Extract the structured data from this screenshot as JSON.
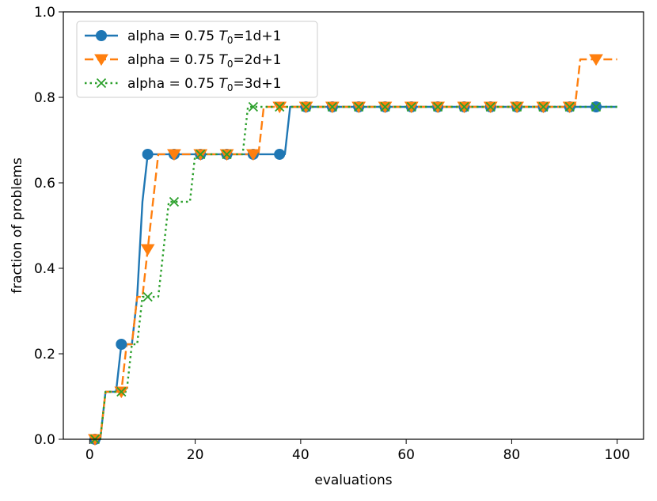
{
  "chart_data": {
    "type": "line",
    "title": "",
    "xlabel": "evaluations",
    "ylabel": "fraction of problems",
    "xlim": [
      -5,
      105
    ],
    "ylim": [
      0.0,
      1.0
    ],
    "xticks": [
      0,
      20,
      40,
      60,
      80,
      100
    ],
    "yticks": [
      0.0,
      0.2,
      0.4,
      0.6,
      0.8,
      1.0
    ],
    "xtick_labels": [
      "0",
      "20",
      "40",
      "60",
      "80",
      "100"
    ],
    "ytick_labels": [
      "0.0",
      "0.2",
      "0.4",
      "0.6",
      "0.8",
      "1.0"
    ],
    "grid": false,
    "legend_position": "upper-left",
    "series": [
      {
        "name": "alpha = 0.75 T0=1d+1",
        "legend_prefix": "alpha = 0.75 ",
        "legend_T": "T",
        "legend_sub": "0",
        "legend_suffix": "=1d+1",
        "color": "#1f77b4",
        "linestyle": "solid",
        "marker": "circle",
        "x": [
          1,
          2,
          3,
          4,
          5,
          6,
          7,
          8,
          9,
          10,
          11,
          12,
          13,
          14,
          15,
          16,
          17,
          18,
          19,
          20,
          21,
          22,
          23,
          24,
          25,
          26,
          27,
          28,
          29,
          30,
          31,
          32,
          33,
          34,
          35,
          36,
          37,
          38,
          39,
          40,
          41,
          42,
          43,
          44,
          45,
          46,
          47,
          48,
          49,
          50,
          51,
          52,
          53,
          54,
          55,
          56,
          57,
          58,
          59,
          60,
          61,
          62,
          63,
          64,
          65,
          66,
          67,
          68,
          69,
          70,
          71,
          72,
          73,
          74,
          75,
          76,
          77,
          78,
          79,
          80,
          81,
          82,
          83,
          84,
          85,
          86,
          87,
          88,
          89,
          90,
          91,
          92,
          93,
          94,
          95,
          96,
          97,
          98,
          99,
          100
        ],
        "y": [
          0.0,
          0.0,
          0.1111,
          0.1111,
          0.1111,
          0.2222,
          0.2222,
          0.2222,
          0.3333,
          0.5556,
          0.6667,
          0.6667,
          0.6667,
          0.6667,
          0.6667,
          0.6667,
          0.6667,
          0.6667,
          0.6667,
          0.6667,
          0.6667,
          0.6667,
          0.6667,
          0.6667,
          0.6667,
          0.6667,
          0.6667,
          0.6667,
          0.6667,
          0.6667,
          0.6667,
          0.6667,
          0.6667,
          0.6667,
          0.6667,
          0.6667,
          0.6667,
          0.7778,
          0.7778,
          0.7778,
          0.7778,
          0.7778,
          0.7778,
          0.7778,
          0.7778,
          0.7778,
          0.7778,
          0.7778,
          0.7778,
          0.7778,
          0.7778,
          0.7778,
          0.7778,
          0.7778,
          0.7778,
          0.7778,
          0.7778,
          0.7778,
          0.7778,
          0.7778,
          0.7778,
          0.7778,
          0.7778,
          0.7778,
          0.7778,
          0.7778,
          0.7778,
          0.7778,
          0.7778,
          0.7778,
          0.7778,
          0.7778,
          0.7778,
          0.7778,
          0.7778,
          0.7778,
          0.7778,
          0.7778,
          0.7778,
          0.7778,
          0.7778,
          0.7778,
          0.7778,
          0.7778,
          0.7778,
          0.7778,
          0.7778,
          0.7778,
          0.7778,
          0.7778,
          0.7778,
          0.7778,
          0.7778,
          0.7778,
          0.7778,
          0.7778,
          0.7778,
          0.7778,
          0.7778,
          0.7778
        ]
      },
      {
        "name": "alpha = 0.75 T0=2d+1",
        "legend_prefix": "alpha = 0.75 ",
        "legend_T": "T",
        "legend_sub": "0",
        "legend_suffix": "=2d+1",
        "color": "#ff7f0e",
        "linestyle": "dashed",
        "marker": "triangle-down",
        "x": [
          1,
          2,
          3,
          4,
          5,
          6,
          7,
          8,
          9,
          10,
          11,
          12,
          13,
          14,
          15,
          16,
          17,
          18,
          19,
          20,
          21,
          22,
          23,
          24,
          25,
          26,
          27,
          28,
          29,
          30,
          31,
          32,
          33,
          34,
          35,
          36,
          37,
          38,
          39,
          40,
          41,
          42,
          43,
          44,
          45,
          46,
          47,
          48,
          49,
          50,
          51,
          52,
          53,
          54,
          55,
          56,
          57,
          58,
          59,
          60,
          61,
          62,
          63,
          64,
          65,
          66,
          67,
          68,
          69,
          70,
          71,
          72,
          73,
          74,
          75,
          76,
          77,
          78,
          79,
          80,
          81,
          82,
          83,
          84,
          85,
          86,
          87,
          88,
          89,
          90,
          91,
          92,
          93,
          94,
          95,
          96,
          97,
          98,
          99,
          100
        ],
        "y": [
          0.0,
          0.0,
          0.1111,
          0.1111,
          0.1111,
          0.1111,
          0.2222,
          0.2222,
          0.3333,
          0.3333,
          0.4444,
          0.5556,
          0.6667,
          0.6667,
          0.6667,
          0.6667,
          0.6667,
          0.6667,
          0.6667,
          0.6667,
          0.6667,
          0.6667,
          0.6667,
          0.6667,
          0.6667,
          0.6667,
          0.6667,
          0.6667,
          0.6667,
          0.6667,
          0.6667,
          0.6667,
          0.7778,
          0.7778,
          0.7778,
          0.7778,
          0.7778,
          0.7778,
          0.7778,
          0.7778,
          0.7778,
          0.7778,
          0.7778,
          0.7778,
          0.7778,
          0.7778,
          0.7778,
          0.7778,
          0.7778,
          0.7778,
          0.7778,
          0.7778,
          0.7778,
          0.7778,
          0.7778,
          0.7778,
          0.7778,
          0.7778,
          0.7778,
          0.7778,
          0.7778,
          0.7778,
          0.7778,
          0.7778,
          0.7778,
          0.7778,
          0.7778,
          0.7778,
          0.7778,
          0.7778,
          0.7778,
          0.7778,
          0.7778,
          0.7778,
          0.7778,
          0.7778,
          0.7778,
          0.7778,
          0.7778,
          0.7778,
          0.7778,
          0.7778,
          0.7778,
          0.7778,
          0.7778,
          0.7778,
          0.7778,
          0.7778,
          0.7778,
          0.7778,
          0.7778,
          0.7778,
          0.8889,
          0.8889,
          0.8889,
          0.8889,
          0.8889,
          0.8889,
          0.8889,
          0.8889
        ]
      },
      {
        "name": "alpha = 0.75 T0=3d+1",
        "legend_prefix": "alpha = 0.75 ",
        "legend_T": "T",
        "legend_sub": "0",
        "legend_suffix": "=3d+1",
        "color": "#2ca02c",
        "linestyle": "dotted",
        "marker": "x",
        "x": [
          1,
          2,
          3,
          4,
          5,
          6,
          7,
          8,
          9,
          10,
          11,
          12,
          13,
          14,
          15,
          16,
          17,
          18,
          19,
          20,
          21,
          22,
          23,
          24,
          25,
          26,
          27,
          28,
          29,
          30,
          31,
          32,
          33,
          34,
          35,
          36,
          37,
          38,
          39,
          40,
          41,
          42,
          43,
          44,
          45,
          46,
          47,
          48,
          49,
          50,
          51,
          52,
          53,
          54,
          55,
          56,
          57,
          58,
          59,
          60,
          61,
          62,
          63,
          64,
          65,
          66,
          67,
          68,
          69,
          70,
          71,
          72,
          73,
          74,
          75,
          76,
          77,
          78,
          79,
          80,
          81,
          82,
          83,
          84,
          85,
          86,
          87,
          88,
          89,
          90,
          91,
          92,
          93,
          94,
          95,
          96,
          97,
          98,
          99,
          100
        ],
        "y": [
          0.0,
          0.0,
          0.1111,
          0.1111,
          0.1111,
          0.1111,
          0.1111,
          0.2222,
          0.2222,
          0.3333,
          0.3333,
          0.3333,
          0.3333,
          0.4444,
          0.5556,
          0.5556,
          0.5556,
          0.5556,
          0.5556,
          0.6667,
          0.6667,
          0.6667,
          0.6667,
          0.6667,
          0.6667,
          0.6667,
          0.6667,
          0.6667,
          0.6667,
          0.7778,
          0.7778,
          0.7778,
          0.7778,
          0.7778,
          0.7778,
          0.7778,
          0.7778,
          0.7778,
          0.7778,
          0.7778,
          0.7778,
          0.7778,
          0.7778,
          0.7778,
          0.7778,
          0.7778,
          0.7778,
          0.7778,
          0.7778,
          0.7778,
          0.7778,
          0.7778,
          0.7778,
          0.7778,
          0.7778,
          0.7778,
          0.7778,
          0.7778,
          0.7778,
          0.7778,
          0.7778,
          0.7778,
          0.7778,
          0.7778,
          0.7778,
          0.7778,
          0.7778,
          0.7778,
          0.7778,
          0.7778,
          0.7778,
          0.7778,
          0.7778,
          0.7778,
          0.7778,
          0.7778,
          0.7778,
          0.7778,
          0.7778,
          0.7778,
          0.7778,
          0.7778,
          0.7778,
          0.7778,
          0.7778,
          0.7778,
          0.7778,
          0.7778,
          0.7778,
          0.7778,
          0.7778,
          0.7778,
          0.7778,
          0.7778,
          0.7778,
          0.7778,
          0.7778,
          0.7778,
          0.7778,
          0.7778
        ]
      }
    ]
  }
}
